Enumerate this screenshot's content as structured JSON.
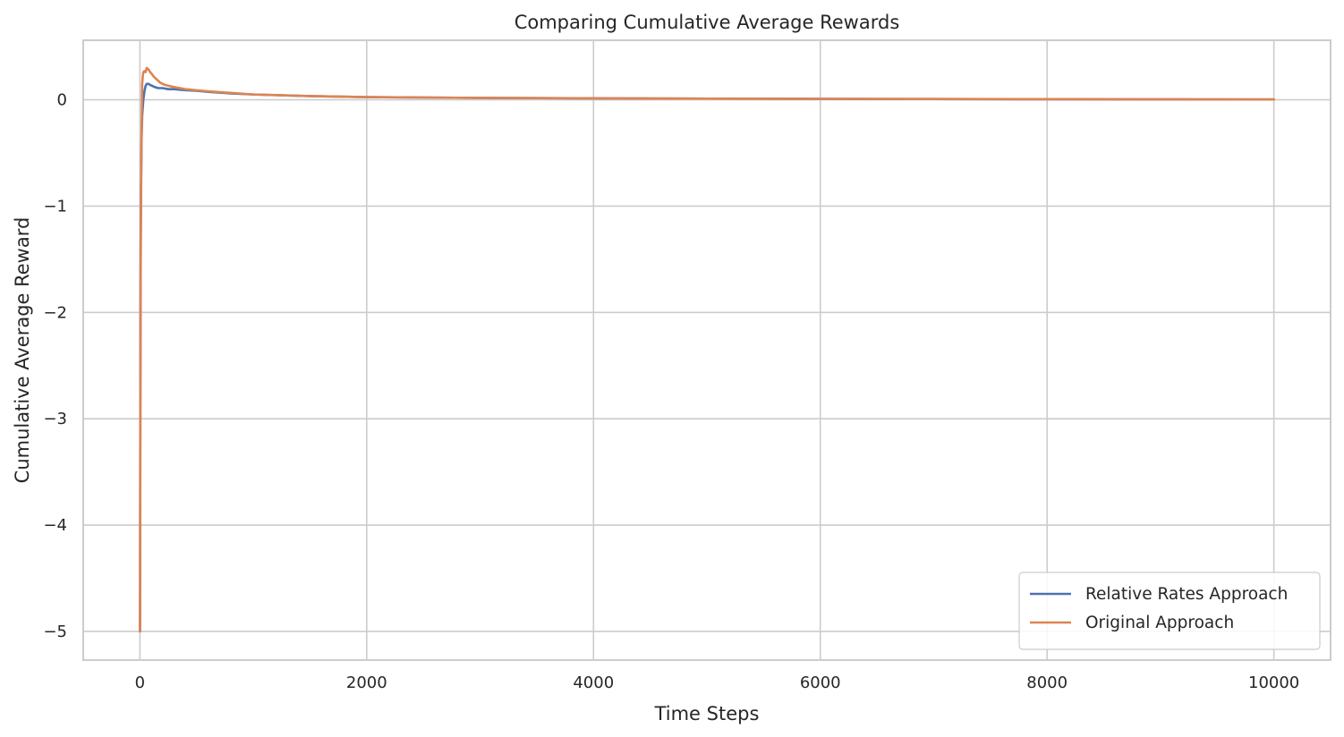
{
  "chart_data": {
    "type": "line",
    "title": "Comparing Cumulative Average Rewards",
    "xlabel": "Time Steps",
    "ylabel": "Cumulative Average Reward",
    "xlim": [
      -500,
      10500
    ],
    "ylim": [
      -5.27,
      0.56
    ],
    "xticks": [
      0,
      2000,
      4000,
      6000,
      8000,
      10000
    ],
    "yticks": [
      0,
      -1,
      -2,
      -3,
      -4,
      -5
    ],
    "grid": true,
    "legend_position": "lower-right",
    "series": [
      {
        "name": "Relative Rates Approach",
        "color": "#4c72b0",
        "x": [
          1,
          3,
          6,
          10,
          15,
          20,
          30,
          40,
          50,
          60,
          75,
          90,
          110,
          130,
          160,
          200,
          250,
          300,
          400,
          500,
          600,
          800,
          1000,
          1500,
          2000,
          3000,
          4000,
          5000,
          6000,
          7000,
          8000,
          9000,
          10000
        ],
        "y": [
          -5.0,
          -3.3,
          -1.5,
          -0.8,
          -0.35,
          -0.15,
          0.0,
          0.08,
          0.13,
          0.15,
          0.15,
          0.14,
          0.13,
          0.12,
          0.11,
          0.11,
          0.1,
          0.1,
          0.09,
          0.085,
          0.075,
          0.06,
          0.05,
          0.035,
          0.025,
          0.018,
          0.014,
          0.011,
          0.009,
          0.007,
          0.005,
          0.004,
          0.003
        ]
      },
      {
        "name": "Original Approach",
        "color": "#dd8452",
        "x": [
          1,
          3,
          6,
          10,
          15,
          20,
          25,
          30,
          40,
          50,
          60,
          70,
          80,
          90,
          100,
          120,
          150,
          180,
          220,
          260,
          300,
          400,
          500,
          600,
          800,
          1000,
          1500,
          2000,
          3000,
          4000,
          5000,
          6000,
          7000,
          8000,
          9000,
          10000
        ],
        "y": [
          -5.0,
          -3.5,
          -1.8,
          -0.9,
          -0.3,
          0.15,
          0.22,
          0.26,
          0.27,
          0.26,
          0.3,
          0.29,
          0.28,
          0.26,
          0.25,
          0.22,
          0.19,
          0.16,
          0.14,
          0.13,
          0.12,
          0.1,
          0.09,
          0.08,
          0.065,
          0.05,
          0.035,
          0.025,
          0.018,
          0.014,
          0.011,
          0.009,
          0.007,
          0.006,
          0.004,
          0.003
        ]
      }
    ]
  }
}
